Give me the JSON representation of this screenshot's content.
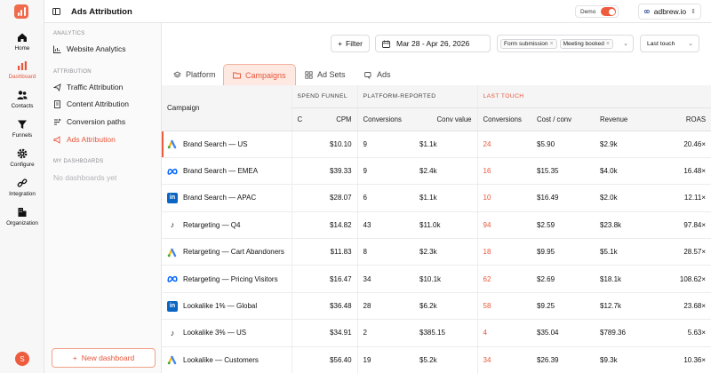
{
  "app": {
    "page_title": "Ads Attribution",
    "demo_label": "Demo",
    "site_name": "adbrew.io",
    "accent_color": "#ee5b3d"
  },
  "rail": [
    {
      "label": "Home",
      "icon": "home-icon"
    },
    {
      "label": "Dashboard",
      "icon": "bar-chart-icon",
      "active": true
    },
    {
      "label": "Contacts",
      "icon": "users-icon"
    },
    {
      "label": "Funnels",
      "icon": "funnel-icon"
    },
    {
      "label": "Configure",
      "icon": "gear-icon"
    },
    {
      "label": "Integration",
      "icon": "link-icon"
    },
    {
      "label": "Organization",
      "icon": "building-icon"
    }
  ],
  "avatar_initial": "S",
  "sidebar": {
    "analytics_title": "ANALYTICS",
    "website_analytics": "Website Analytics",
    "attribution_title": "ATTRIBUTION",
    "traffic": "Traffic Attribution",
    "content": "Content Attribution",
    "conversion": "Conversion paths",
    "ads": "Ads Attribution",
    "dashboards_title": "MY DASHBOARDS",
    "empty": "No dashboards yet",
    "new_dashboard": "New dashboard"
  },
  "filters": {
    "filter_label": "Filter",
    "date_range": "Mar 28 - Apr 26, 2026",
    "chips": [
      "Form submission",
      "Meeting booked"
    ],
    "model": "Last touch"
  },
  "tabs": [
    {
      "label": "Platform",
      "icon": "layers-icon"
    },
    {
      "label": "Campaigns",
      "icon": "folder-icon",
      "active": true
    },
    {
      "label": "Ad Sets",
      "icon": "grid-icon"
    },
    {
      "label": "Ads",
      "icon": "ad-icon"
    }
  ],
  "table": {
    "campaign_header": "Campaign",
    "groups": {
      "spend": "SPEND FUNNEL",
      "platform": "PLATFORM-REPORTED",
      "last_touch": "LAST TOUCH"
    },
    "columns": [
      "C",
      "CPM",
      "Conversions",
      "Conv value",
      "Conversions",
      "Cost / conv",
      "Revenue",
      "ROAS"
    ],
    "rows": [
      {
        "platform": "google",
        "name": "Brand Search — US",
        "cpm": "$10.10",
        "pconv": "9",
        "pval": "$1.1k",
        "lconv": "24",
        "cost": "$5.90",
        "rev": "$2.9k",
        "roas": "20.46×"
      },
      {
        "platform": "meta",
        "name": "Brand Search — EMEA",
        "cpm": "$39.33",
        "pconv": "9",
        "pval": "$2.4k",
        "lconv": "16",
        "cost": "$15.35",
        "rev": "$4.0k",
        "roas": "16.48×"
      },
      {
        "platform": "linkedin",
        "name": "Brand Search — APAC",
        "cpm": "$28.07",
        "pconv": "6",
        "pval": "$1.1k",
        "lconv": "10",
        "cost": "$16.49",
        "rev": "$2.0k",
        "roas": "12.11×"
      },
      {
        "platform": "tiktok",
        "name": "Retargeting — Q4",
        "cpm": "$14.82",
        "pconv": "43",
        "pval": "$11.0k",
        "lconv": "94",
        "cost": "$2.59",
        "rev": "$23.8k",
        "roas": "97.84×"
      },
      {
        "platform": "google",
        "name": "Retargeting — Cart Abandoners",
        "cpm": "$11.83",
        "pconv": "8",
        "pval": "$2.3k",
        "lconv": "18",
        "cost": "$9.95",
        "rev": "$5.1k",
        "roas": "28.57×"
      },
      {
        "platform": "meta",
        "name": "Retargeting — Pricing Visitors",
        "cpm": "$16.47",
        "pconv": "34",
        "pval": "$10.1k",
        "lconv": "62",
        "cost": "$2.69",
        "rev": "$18.1k",
        "roas": "108.62×"
      },
      {
        "platform": "linkedin",
        "name": "Lookalike 1% — Global",
        "cpm": "$36.48",
        "pconv": "28",
        "pval": "$6.2k",
        "lconv": "58",
        "cost": "$9.25",
        "rev": "$12.7k",
        "roas": "23.68×"
      },
      {
        "platform": "tiktok",
        "name": "Lookalike 3% — US",
        "cpm": "$34.91",
        "pconv": "2",
        "pval": "$385.15",
        "lconv": "4",
        "cost": "$35.04",
        "rev": "$789.36",
        "roas": "5.63×"
      },
      {
        "platform": "google",
        "name": "Lookalike — Customers",
        "cpm": "$56.40",
        "pconv": "19",
        "pval": "$5.2k",
        "lconv": "34",
        "cost": "$26.39",
        "rev": "$9.3k",
        "roas": "10.36×"
      }
    ]
  }
}
